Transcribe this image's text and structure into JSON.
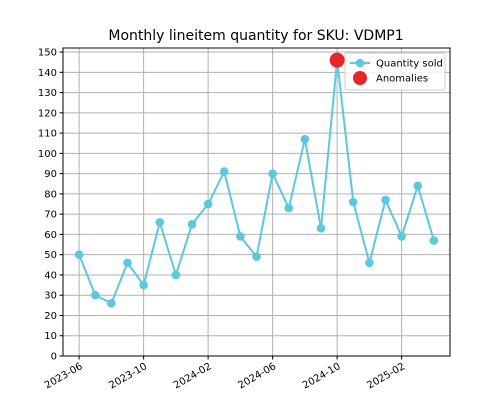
{
  "chart_data": {
    "type": "line",
    "title": "Monthly lineitem quantity for SKU: VDMP1",
    "xlabel": "",
    "ylabel": "",
    "x": [
      "2023-06",
      "2023-07",
      "2023-08",
      "2023-09",
      "2023-10",
      "2023-11",
      "2023-12",
      "2024-01",
      "2024-02",
      "2024-03",
      "2024-04",
      "2024-05",
      "2024-06",
      "2024-07",
      "2024-08",
      "2024-09",
      "2024-10",
      "2024-11",
      "2024-12",
      "2025-01",
      "2025-02",
      "2025-03",
      "2025-04"
    ],
    "series": [
      {
        "name": "Quantity sold",
        "color": "#5bc8de",
        "values": [
          50,
          30,
          26,
          46,
          35,
          66,
          40,
          65,
          75,
          91,
          59,
          49,
          90,
          73,
          107,
          63,
          146,
          76,
          46,
          77,
          59,
          84,
          57
        ]
      }
    ],
    "anomalies": {
      "name": "Anomalies",
      "color": "#e8262a",
      "points": [
        {
          "x": "2024-10",
          "y": 146
        }
      ]
    },
    "xticks": [
      "2023-06",
      "2023-10",
      "2024-02",
      "2024-06",
      "2024-10",
      "2025-02"
    ],
    "yticks": [
      0,
      10,
      20,
      30,
      40,
      50,
      60,
      70,
      80,
      90,
      100,
      110,
      120,
      130,
      140,
      150
    ],
    "ylim": [
      0,
      152
    ],
    "xlim": [
      "2023-05",
      "2025-05"
    ],
    "grid": true,
    "legend_position": "top-right"
  }
}
